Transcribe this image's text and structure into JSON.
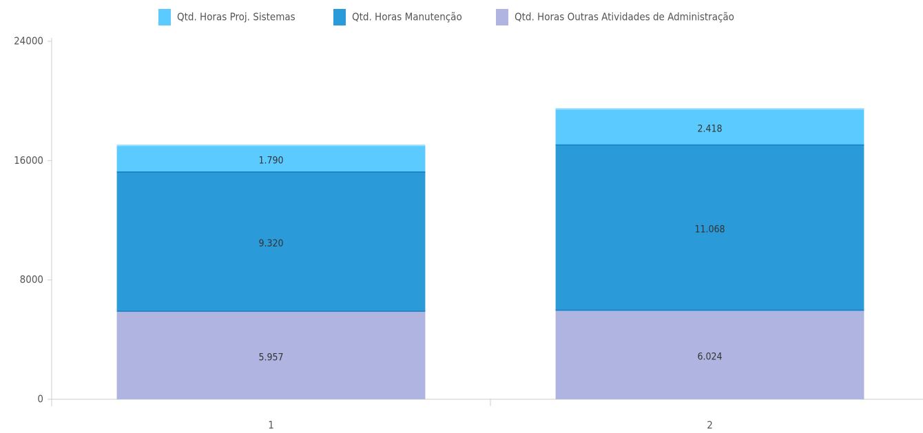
{
  "chart_data": {
    "type": "bar",
    "stacked": true,
    "categories": [
      "1",
      "2"
    ],
    "series": [
      {
        "name": "Qtd. Horas Proj. Sistemas",
        "color": "#5bcbff",
        "values": [
          1790,
          2418
        ],
        "value_labels": [
          "1.790",
          "2.418"
        ]
      },
      {
        "name": "Qtd. Horas Manutenção",
        "color": "#2a9ad8",
        "values": [
          9320,
          11068
        ],
        "value_labels": [
          "9.320",
          "11.068"
        ]
      },
      {
        "name": "Qtd. Horas Outras Atividades de Administração",
        "color": "#afb5e0",
        "values": [
          5957,
          6024
        ],
        "value_labels": [
          "5.957",
          "6.024"
        ]
      }
    ],
    "ylim": [
      0,
      24000
    ],
    "yticks": [
      0,
      8000,
      16000,
      24000
    ],
    "legend": "top"
  }
}
